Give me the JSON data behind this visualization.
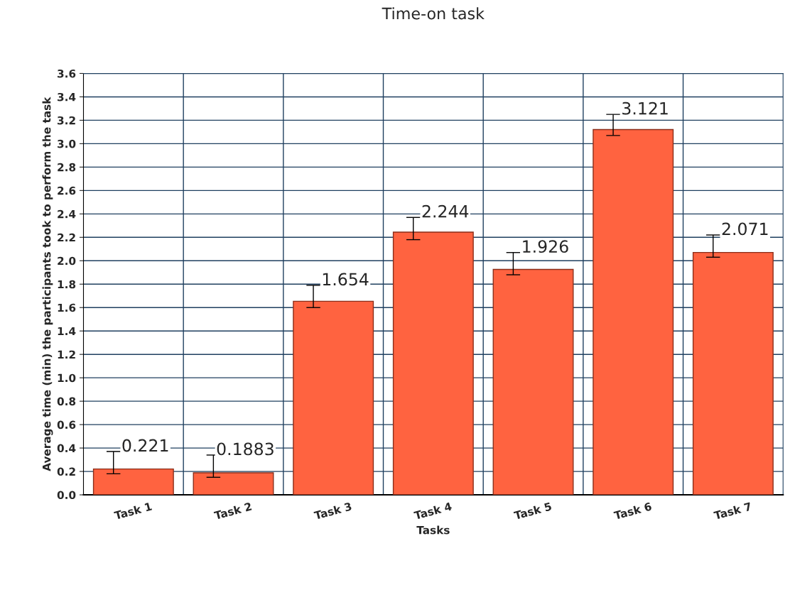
{
  "chart_data": {
    "type": "bar",
    "title": "Time-on task",
    "xlabel": "Tasks",
    "ylabel": "Average time (min) the participants took to perform the task",
    "categories": [
      "Task 1",
      "Task 2",
      "Task 3",
      "Task 4",
      "Task 5",
      "Task 6",
      "Task 7"
    ],
    "values": [
      0.221,
      0.1883,
      1.654,
      2.244,
      1.926,
      3.121,
      2.071
    ],
    "errors": [
      [
        0.18,
        0.37
      ],
      [
        0.15,
        0.34
      ],
      [
        1.6,
        1.79
      ],
      [
        2.18,
        2.37
      ],
      [
        1.88,
        2.07
      ],
      [
        3.07,
        3.25
      ],
      [
        2.03,
        2.22
      ]
    ],
    "color": "#ff6340",
    "ylim": [
      0,
      3.6
    ],
    "yticks": [
      "0.0",
      0.2,
      0.4,
      0.6,
      0.8,
      "1.0",
      1.2,
      1.4,
      1.6,
      1.8,
      "2.0",
      2.2,
      2.4,
      2.6,
      2.8,
      "3.0",
      3.2,
      3.4,
      3.6
    ],
    "grid": true,
    "data_labels": true
  }
}
